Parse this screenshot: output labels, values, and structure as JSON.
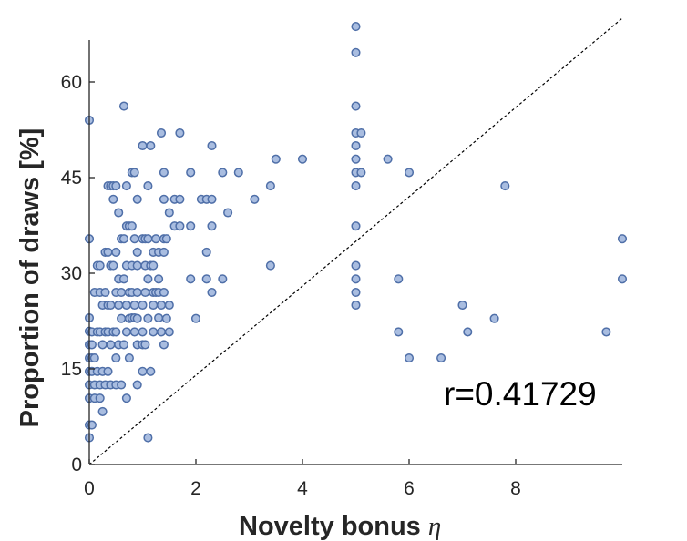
{
  "chart_data": {
    "type": "scatter",
    "xlabel": "Novelty bonus",
    "xlabel_symbol": "η",
    "ylabel": "Proportion of draws [%]",
    "annotation": "r=0.41729",
    "xlim": [
      0,
      10
    ],
    "ylim": [
      0,
      70
    ],
    "xticks": [
      0,
      2,
      4,
      6,
      8
    ],
    "yticks": [
      0,
      15,
      30,
      45,
      60
    ],
    "reference_line": "y = 7x (dashed diagonal)",
    "grid": false,
    "marker_fill": "#a9bde0",
    "marker_edge": "#4f6fa8",
    "points": [
      [
        0,
        54
      ],
      [
        0,
        35.4
      ],
      [
        0,
        23
      ],
      [
        0,
        20.9
      ],
      [
        0,
        18.8
      ],
      [
        0,
        16.7
      ],
      [
        0,
        14.6
      ],
      [
        0,
        12.5
      ],
      [
        0,
        10.4
      ],
      [
        0,
        6.2
      ],
      [
        0,
        4.2
      ],
      [
        0.05,
        20.8
      ],
      [
        0.05,
        16.7
      ],
      [
        0.05,
        18.8
      ],
      [
        0.05,
        14.6
      ],
      [
        0.05,
        6.2
      ],
      [
        0.1,
        27
      ],
      [
        0.1,
        16.7
      ],
      [
        0.1,
        12.5
      ],
      [
        0.1,
        10.4
      ],
      [
        0.15,
        31.2
      ],
      [
        0.15,
        20.8
      ],
      [
        0.15,
        14.6
      ],
      [
        0.2,
        31.2
      ],
      [
        0.2,
        27
      ],
      [
        0.2,
        20.8
      ],
      [
        0.2,
        12.5
      ],
      [
        0.2,
        10.4
      ],
      [
        0.25,
        25
      ],
      [
        0.25,
        18.8
      ],
      [
        0.25,
        14.6
      ],
      [
        0.25,
        8.3
      ],
      [
        0.3,
        33.3
      ],
      [
        0.3,
        27
      ],
      [
        0.3,
        20.8
      ],
      [
        0.3,
        12.5
      ],
      [
        0.35,
        43.7
      ],
      [
        0.35,
        33.3
      ],
      [
        0.35,
        25
      ],
      [
        0.35,
        20.8
      ],
      [
        0.35,
        14.6
      ],
      [
        0.4,
        43.7
      ],
      [
        0.4,
        31.2
      ],
      [
        0.4,
        25
      ],
      [
        0.4,
        18.8
      ],
      [
        0.4,
        12.5
      ],
      [
        0.45,
        43.7
      ],
      [
        0.45,
        41.6
      ],
      [
        0.45,
        31.2
      ],
      [
        0.45,
        20.8
      ],
      [
        0.5,
        43.7
      ],
      [
        0.5,
        33.3
      ],
      [
        0.5,
        27
      ],
      [
        0.5,
        20.8
      ],
      [
        0.5,
        16.7
      ],
      [
        0.5,
        12.5
      ],
      [
        0.55,
        39.5
      ],
      [
        0.55,
        29.1
      ],
      [
        0.55,
        25
      ],
      [
        0.55,
        18.8
      ],
      [
        0.6,
        35.4
      ],
      [
        0.6,
        27
      ],
      [
        0.6,
        22.9
      ],
      [
        0.6,
        12.5
      ],
      [
        0.65,
        56.2
      ],
      [
        0.65,
        35.4
      ],
      [
        0.65,
        29.1
      ],
      [
        0.65,
        18.8
      ],
      [
        0.7,
        43.7
      ],
      [
        0.7,
        37.4
      ],
      [
        0.7,
        31.2
      ],
      [
        0.7,
        25
      ],
      [
        0.7,
        20.8
      ],
      [
        0.7,
        10.4
      ],
      [
        0.75,
        37.4
      ],
      [
        0.75,
        27
      ],
      [
        0.75,
        22.9
      ],
      [
        0.75,
        16.7
      ],
      [
        0.8,
        45.8
      ],
      [
        0.8,
        37.4
      ],
      [
        0.8,
        31.2
      ],
      [
        0.8,
        27
      ],
      [
        0.8,
        23
      ],
      [
        0.85,
        45.8
      ],
      [
        0.85,
        35.4
      ],
      [
        0.85,
        25
      ],
      [
        0.85,
        23
      ],
      [
        0.85,
        20.8
      ],
      [
        0.9,
        41.6
      ],
      [
        0.9,
        33.3
      ],
      [
        0.9,
        31.2
      ],
      [
        0.9,
        27
      ],
      [
        0.9,
        22.9
      ],
      [
        0.9,
        18.8
      ],
      [
        0.9,
        12.5
      ],
      [
        1.0,
        50
      ],
      [
        1.0,
        35.4
      ],
      [
        1.0,
        25
      ],
      [
        1.0,
        20.8
      ],
      [
        1.0,
        18.8
      ],
      [
        1.0,
        14.6
      ],
      [
        1.05,
        35.4
      ],
      [
        1.05,
        31.2
      ],
      [
        1.05,
        27
      ],
      [
        1.05,
        18.8
      ],
      [
        1.1,
        43.7
      ],
      [
        1.1,
        35.4
      ],
      [
        1.1,
        29.1
      ],
      [
        1.1,
        22.9
      ],
      [
        1.1,
        4.2
      ],
      [
        1.15,
        50
      ],
      [
        1.15,
        31.2
      ],
      [
        1.15,
        14.6
      ],
      [
        1.2,
        33.3
      ],
      [
        1.2,
        31.2
      ],
      [
        1.2,
        27
      ],
      [
        1.2,
        25
      ],
      [
        1.2,
        20.8
      ],
      [
        1.25,
        35.4
      ],
      [
        1.25,
        27
      ],
      [
        1.3,
        33.3
      ],
      [
        1.3,
        29.1
      ],
      [
        1.3,
        27
      ],
      [
        1.3,
        23
      ],
      [
        1.35,
        52
      ],
      [
        1.35,
        25
      ],
      [
        1.35,
        20.8
      ],
      [
        1.4,
        45.8
      ],
      [
        1.4,
        41.6
      ],
      [
        1.4,
        35.4
      ],
      [
        1.4,
        33.3
      ],
      [
        1.4,
        27
      ],
      [
        1.4,
        18.8
      ],
      [
        1.45,
        35.4
      ],
      [
        1.45,
        22.9
      ],
      [
        1.5,
        39.5
      ],
      [
        1.5,
        25
      ],
      [
        1.5,
        20.8
      ],
      [
        1.6,
        41.6
      ],
      [
        1.6,
        37.4
      ],
      [
        1.7,
        52
      ],
      [
        1.7,
        41.6
      ],
      [
        1.7,
        37.4
      ],
      [
        1.9,
        45.8
      ],
      [
        1.9,
        37.4
      ],
      [
        1.9,
        29.1
      ],
      [
        2.0,
        22.9
      ],
      [
        2.1,
        41.6
      ],
      [
        2.2,
        41.6
      ],
      [
        2.2,
        33.3
      ],
      [
        2.2,
        29.1
      ],
      [
        2.3,
        50
      ],
      [
        2.3,
        41.6
      ],
      [
        2.3,
        37.4
      ],
      [
        2.3,
        27
      ],
      [
        2.5,
        45.8
      ],
      [
        2.5,
        29.1
      ],
      [
        2.6,
        39.5
      ],
      [
        2.8,
        45.8
      ],
      [
        3.1,
        41.6
      ],
      [
        3.4,
        43.7
      ],
      [
        3.4,
        31.2
      ],
      [
        3.5,
        47.9
      ],
      [
        4.0,
        47.9
      ],
      [
        5.0,
        68.7
      ],
      [
        5.0,
        64.6
      ],
      [
        5.0,
        56.2
      ],
      [
        5.0,
        52
      ],
      [
        5.0,
        50
      ],
      [
        5.0,
        47.9
      ],
      [
        5.0,
        45.8
      ],
      [
        5.0,
        43.7
      ],
      [
        5.0,
        37.4
      ],
      [
        5.0,
        31.2
      ],
      [
        5.0,
        29.1
      ],
      [
        5.0,
        27
      ],
      [
        5.0,
        25
      ],
      [
        5.1,
        52
      ],
      [
        5.1,
        45.8
      ],
      [
        5.6,
        47.9
      ],
      [
        5.8,
        29.1
      ],
      [
        5.8,
        20.8
      ],
      [
        6.0,
        45.8
      ],
      [
        6.0,
        16.7
      ],
      [
        6.6,
        16.7
      ],
      [
        7.0,
        25
      ],
      [
        7.1,
        20.8
      ],
      [
        7.6,
        22.9
      ],
      [
        7.8,
        43.7
      ],
      [
        9.7,
        20.8
      ],
      [
        10.0,
        35.4
      ],
      [
        10.0,
        29.1
      ]
    ]
  }
}
